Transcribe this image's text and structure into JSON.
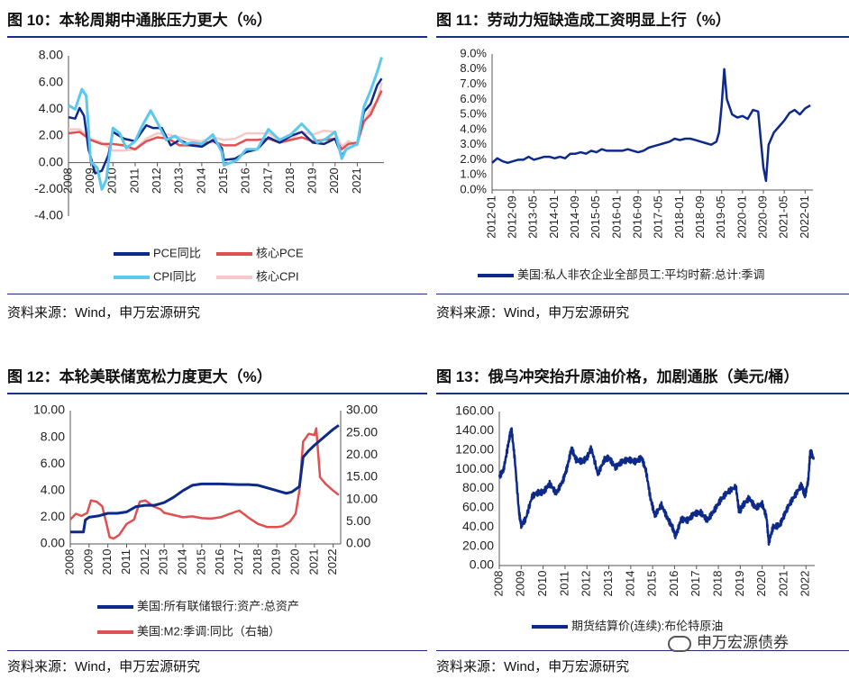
{
  "panels": [
    {
      "title": "图 10：本轮周期中通胀压力更大（%）",
      "source": "资料来源：Wind，申万宏源研究",
      "chart_data": {
        "type": "line",
        "x_ticks": [
          "2008",
          "2009",
          "2010",
          "2011",
          "2012",
          "2013",
          "2014",
          "2015",
          "2016",
          "2017",
          "2018",
          "2019",
          "2020",
          "2021"
        ],
        "y_ticks": [
          "8.00",
          "6.00",
          "4.00",
          "2.00",
          "0.00",
          "-2.00",
          "-4.00"
        ],
        "ylim": [
          -4,
          8
        ],
        "xlim": [
          2008.0,
          2022.2
        ],
        "legend_position": "bottom",
        "series": [
          {
            "name": "PCE同比",
            "color": "#0d2a8a",
            "x": [
              2008.0,
              2008.3,
              2008.5,
              2008.7,
              2008.9,
              2009.2,
              2009.5,
              2009.8,
              2010.0,
              2010.5,
              2011.0,
              2011.5,
              2011.8,
              2012.2,
              2012.6,
              2013.0,
              2013.5,
              2014.0,
              2014.5,
              2014.9,
              2015.0,
              2015.5,
              2016.0,
              2016.5,
              2017.0,
              2017.5,
              2018.0,
              2018.5,
              2019.0,
              2019.5,
              2020.0,
              2020.3,
              2020.5,
              2021.0,
              2021.3,
              2021.6,
              2021.9,
              2022.1
            ],
            "y": [
              3.4,
              3.3,
              4.1,
              3.5,
              1.0,
              -0.8,
              -0.6,
              0.6,
              2.3,
              1.8,
              1.6,
              2.8,
              2.6,
              2.6,
              1.3,
              1.7,
              1.3,
              1.2,
              1.7,
              1.1,
              0.2,
              0.3,
              0.8,
              1.0,
              1.9,
              1.5,
              2.0,
              2.3,
              1.5,
              1.4,
              1.8,
              0.5,
              1.0,
              1.4,
              3.8,
              4.4,
              5.8,
              6.3
            ]
          },
          {
            "name": "核心PCE",
            "color": "#e05050",
            "x": [
              2008.0,
              2008.5,
              2009.0,
              2009.5,
              2010.0,
              2010.5,
              2011.0,
              2011.5,
              2012.0,
              2012.5,
              2013.0,
              2013.5,
              2014.0,
              2014.5,
              2015.0,
              2015.5,
              2016.0,
              2016.5,
              2017.0,
              2017.5,
              2018.0,
              2018.5,
              2019.0,
              2019.5,
              2020.0,
              2020.3,
              2020.6,
              2021.0,
              2021.3,
              2021.6,
              2021.9,
              2022.1
            ],
            "y": [
              2.2,
              2.3,
              1.7,
              1.4,
              1.4,
              1.3,
              1.0,
              1.6,
              1.9,
              1.8,
              1.3,
              1.3,
              1.4,
              1.6,
              1.3,
              1.3,
              1.7,
              1.7,
              1.8,
              1.5,
              1.7,
              1.9,
              1.6,
              1.7,
              1.8,
              1.0,
              1.4,
              1.5,
              3.1,
              3.6,
              4.7,
              5.4
            ]
          },
          {
            "name": "CPI同比",
            "color": "#5bc8ee",
            "x": [
              2008.0,
              2008.3,
              2008.6,
              2008.8,
              2009.0,
              2009.3,
              2009.5,
              2009.7,
              2010.0,
              2010.3,
              2010.6,
              2011.0,
              2011.3,
              2011.7,
              2012.0,
              2012.4,
              2012.8,
              2013.2,
              2013.6,
              2014.0,
              2014.5,
              2014.9,
              2015.0,
              2015.3,
              2015.6,
              2016.0,
              2016.5,
              2017.0,
              2017.5,
              2018.0,
              2018.5,
              2018.9,
              2019.2,
              2019.6,
              2020.0,
              2020.3,
              2020.5,
              2021.0,
              2021.3,
              2021.6,
              2021.9,
              2022.1
            ],
            "y": [
              4.3,
              4.0,
              5.5,
              5.0,
              0.1,
              -0.4,
              -2.0,
              -1.3,
              2.6,
              2.2,
              1.1,
              1.6,
              2.7,
              3.9,
              3.0,
              1.7,
              2.0,
              1.4,
              1.5,
              1.4,
              2.1,
              0.8,
              -0.2,
              0.0,
              0.2,
              1.0,
              1.0,
              2.5,
              1.7,
              2.1,
              2.9,
              2.2,
              1.5,
              1.8,
              2.3,
              0.3,
              1.0,
              1.4,
              4.2,
              5.4,
              6.8,
              7.9
            ]
          },
          {
            "name": "核心CPI",
            "color": "#f6c8c8",
            "x": [
              2008.0,
              2008.5,
              2009.0,
              2009.5,
              2010.0,
              2010.5,
              2011.0,
              2011.5,
              2012.0,
              2012.5,
              2013.0,
              2013.5,
              2014.0,
              2014.5,
              2015.0,
              2015.5,
              2016.0,
              2016.5,
              2017.0,
              2017.5,
              2018.0,
              2018.5,
              2019.0,
              2019.5,
              2020.0,
              2020.3,
              2020.6,
              2021.0,
              2021.3,
              2021.6,
              2021.9,
              2022.1
            ],
            "y": [
              2.5,
              2.5,
              1.8,
              1.5,
              0.9,
              0.9,
              1.0,
              1.8,
              2.2,
              2.1,
              1.9,
              1.7,
              1.6,
              1.9,
              1.7,
              1.8,
              2.2,
              2.2,
              2.2,
              1.7,
              1.8,
              2.3,
              2.1,
              2.4,
              2.3,
              1.2,
              1.6,
              1.3,
              3.0,
              4.0,
              4.6,
              6.0
            ]
          }
        ]
      }
    },
    {
      "title": "图 11：劳动力短缺造成工资明显上行（%）",
      "source": "资料来源：Wind，申万宏源研究",
      "chart_data": {
        "type": "line",
        "x_ticks": [
          "2012-01",
          "2012-09",
          "2013-05",
          "2014-01",
          "2014-09",
          "2015-05",
          "2016-01",
          "2016-09",
          "2017-05",
          "2018-01",
          "2018-09",
          "2019-05",
          "2020-01",
          "2020-09",
          "2021-05",
          "2022-01"
        ],
        "y_ticks": [
          "9.0%",
          "8.0%",
          "7.0%",
          "6.0%",
          "5.0%",
          "4.0%",
          "3.0%",
          "2.0%",
          "1.0%",
          "0.0%"
        ],
        "ylim": [
          0,
          9
        ],
        "legend_position": "bottom",
        "series": [
          {
            "name": "美国:私人非农企业全部员工:平均时薪:总计:季调",
            "color": "#0d2a8a",
            "x": [
              0,
              2,
              4,
              6,
              8,
              10,
              12,
              14,
              16,
              18,
              20,
              22,
              24,
              26,
              28,
              30,
              32,
              34,
              36,
              38,
              40,
              42,
              44,
              46,
              48,
              50,
              52,
              54,
              56,
              58,
              60,
              62,
              64,
              66,
              68,
              70,
              72,
              74,
              76,
              78,
              80,
              82,
              84,
              86,
              87,
              88,
              89,
              90,
              92,
              94,
              96,
              98,
              100,
              102,
              104,
              105,
              106,
              108,
              110,
              112,
              114,
              116,
              118,
              120,
              122
            ],
            "y": [
              1.8,
              2.1,
              1.9,
              1.8,
              1.9,
              2.0,
              2.0,
              2.2,
              2.0,
              2.1,
              2.2,
              2.2,
              2.1,
              2.2,
              2.1,
              2.4,
              2.4,
              2.5,
              2.4,
              2.6,
              2.5,
              2.7,
              2.6,
              2.6,
              2.6,
              2.6,
              2.7,
              2.6,
              2.5,
              2.6,
              2.8,
              2.9,
              3.0,
              3.1,
              3.2,
              3.4,
              3.3,
              3.4,
              3.4,
              3.3,
              3.2,
              3.1,
              3.0,
              3.2,
              3.8,
              5.6,
              8.0,
              6.0,
              5.0,
              4.8,
              4.9,
              4.7,
              5.3,
              5.2,
              1.5,
              0.6,
              3.0,
              3.8,
              4.2,
              4.6,
              5.1,
              5.3,
              5.0,
              5.4,
              5.6
            ]
          }
        ]
      }
    },
    {
      "title": "图 12：本轮美联储宽松力度更大（%）",
      "source": "资料来源：Wind，申万宏源研究",
      "chart_data": {
        "type": "line",
        "x_ticks": [
          "2008",
          "2009",
          "2010",
          "2011",
          "2012",
          "2013",
          "2014",
          "2015",
          "2016",
          "2017",
          "2018",
          "2019",
          "2020",
          "2021",
          "2022"
        ],
        "y_ticks_left": [
          "10.00",
          "8.00",
          "6.00",
          "4.00",
          "2.00",
          "0.00"
        ],
        "y_ticks_right": [
          "30.00",
          "25.00",
          "20.00",
          "15.00",
          "10.00",
          "5.00",
          "0.00"
        ],
        "ylim_left": [
          0,
          10
        ],
        "ylim_right": [
          0,
          30
        ],
        "xlim": [
          2008.0,
          2022.4
        ],
        "legend_position": "bottom",
        "series": [
          {
            "name": "美国:所有联储银行:资产:总资产",
            "axis": "left",
            "color": "#0d2a8a",
            "x": [
              2008.0,
              2008.7,
              2008.8,
              2009.0,
              2009.5,
              2010.0,
              2010.5,
              2011.0,
              2011.5,
              2012.0,
              2012.5,
              2013.0,
              2013.5,
              2014.0,
              2014.5,
              2015.0,
              2016.0,
              2017.0,
              2017.5,
              2018.0,
              2018.5,
              2019.0,
              2019.5,
              2019.8,
              2020.0,
              2020.2,
              2020.4,
              2020.7,
              2021.0,
              2021.5,
              2022.0,
              2022.3
            ],
            "y": [
              0.9,
              0.9,
              1.8,
              2.0,
              2.1,
              2.3,
              2.3,
              2.4,
              2.8,
              2.9,
              2.9,
              3.1,
              3.5,
              4.0,
              4.4,
              4.5,
              4.5,
              4.45,
              4.45,
              4.4,
              4.2,
              4.0,
              3.8,
              3.9,
              4.1,
              4.3,
              6.5,
              7.0,
              7.4,
              8.0,
              8.6,
              8.9
            ]
          },
          {
            "name": "美国:M2:季调:同比（右轴）",
            "axis": "right",
            "color": "#e05050",
            "x": [
              2008.0,
              2008.3,
              2008.6,
              2008.9,
              2009.1,
              2009.4,
              2009.7,
              2009.9,
              2010.1,
              2010.3,
              2010.6,
              2011.0,
              2011.4,
              2011.7,
              2012.0,
              2012.4,
              2012.8,
              2013.0,
              2013.5,
              2014.0,
              2014.5,
              2015.0,
              2015.5,
              2016.0,
              2016.5,
              2017.0,
              2017.5,
              2018.0,
              2018.5,
              2019.0,
              2019.3,
              2019.7,
              2020.0,
              2020.2,
              2020.4,
              2020.7,
              2021.0,
              2021.1,
              2021.3,
              2021.6,
              2022.0,
              2022.3
            ],
            "y": [
              5.5,
              6.8,
              6.3,
              7.0,
              9.8,
              9.5,
              8.5,
              5.0,
              1.5,
              1.2,
              2.0,
              4.5,
              5.5,
              9.5,
              9.8,
              8.5,
              7.8,
              7.0,
              6.5,
              6.0,
              6.2,
              5.8,
              5.7,
              6.0,
              6.8,
              7.5,
              5.9,
              4.5,
              3.8,
              3.8,
              4.0,
              5.0,
              6.8,
              12.0,
              23.0,
              24.8,
              24.5,
              26.0,
              15.0,
              13.5,
              12.0,
              11.0
            ]
          }
        ]
      }
    },
    {
      "title": "图 13：俄乌冲突抬升原油价格，加剧通胀（美元/桶）",
      "source": "资料来源：Wind，申万宏源研究",
      "chart_data": {
        "type": "line",
        "x_ticks": [
          "2008",
          "2009",
          "2010",
          "2011",
          "2012",
          "2013",
          "2014",
          "2015",
          "2016",
          "2017",
          "2018",
          "2019",
          "2020",
          "2021",
          "2022"
        ],
        "y_ticks": [
          "160.00",
          "140.00",
          "120.00",
          "100.00",
          "80.00",
          "60.00",
          "40.00",
          "20.00",
          "0.00"
        ],
        "ylim": [
          0,
          160
        ],
        "xlim": [
          2008.0,
          2022.4
        ],
        "legend_position": "bottom",
        "series": [
          {
            "name": "期货结算价(连续):布伦特原油",
            "color": "#0d2a8a",
            "x": [
              2008.0,
              2008.2,
              2008.4,
              2008.55,
              2008.7,
              2008.9,
              2009.0,
              2009.2,
              2009.5,
              2009.8,
              2010.0,
              2010.3,
              2010.6,
              2010.9,
              2011.1,
              2011.3,
              2011.5,
              2011.8,
              2012.0,
              2012.2,
              2012.5,
              2012.8,
              2013.0,
              2013.3,
              2013.6,
              2013.9,
              2014.2,
              2014.5,
              2014.7,
              2014.9,
              2015.1,
              2015.4,
              2015.7,
              2015.9,
              2016.05,
              2016.3,
              2016.6,
              2016.9,
              2017.2,
              2017.5,
              2017.8,
              2018.1,
              2018.4,
              2018.8,
              2018.95,
              2019.1,
              2019.4,
              2019.7,
              2020.0,
              2020.2,
              2020.3,
              2020.5,
              2020.8,
              2021.0,
              2021.2,
              2021.5,
              2021.8,
              2021.95,
              2022.1,
              2022.2,
              2022.35
            ],
            "y": [
              92,
              100,
              125,
              143,
              112,
              55,
              42,
              48,
              72,
              76,
              76,
              85,
              75,
              88,
              102,
              122,
              110,
              108,
              112,
              122,
              95,
              110,
              112,
              102,
              108,
              110,
              108,
              112,
              98,
              70,
              52,
              63,
              48,
              40,
              30,
              48,
              47,
              54,
              55,
              47,
              57,
              68,
              76,
              82,
              55,
              62,
              70,
              60,
              64,
              50,
              24,
              40,
              42,
              52,
              62,
              73,
              84,
              72,
              88,
              120,
              110
            ]
          }
        ]
      }
    }
  ],
  "watermark": "申万宏源债券"
}
